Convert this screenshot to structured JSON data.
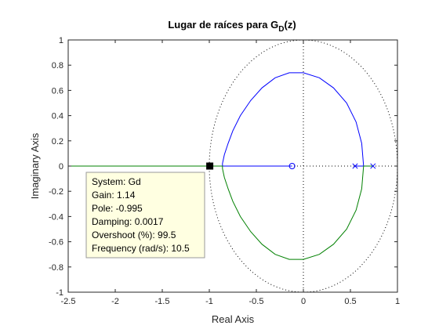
{
  "chart_data": {
    "type": "line",
    "title": {
      "main": "Lugar de raíces para G",
      "subscript": "D",
      "suffix": "(z)"
    },
    "xlabel": "Real Axis",
    "ylabel": "Imaginary Axis",
    "xlim": [
      -2.5,
      1
    ],
    "ylim": [
      -1,
      1
    ],
    "xticks": [
      -2.5,
      -2,
      -1.5,
      -1,
      -0.5,
      0,
      0.5,
      1
    ],
    "xtick_labels": [
      "-2.5",
      "-2",
      "-1.5",
      "-1",
      "-0.5",
      "0",
      "0.5",
      "1"
    ],
    "yticks": [
      -1,
      -0.8,
      -0.6,
      -0.4,
      -0.2,
      0,
      0.2,
      0.4,
      0.6,
      0.8,
      1
    ],
    "ytick_labels": [
      "-1",
      "-0.8",
      "-0.6",
      "-0.4",
      "-0.2",
      "0",
      "0.2",
      "0.4",
      "0.6",
      "0.8",
      "1"
    ],
    "grid": false,
    "unit_circle": true,
    "colors": {
      "branch1": "#0000ff",
      "branch2": "#008000",
      "guide": "#000000"
    },
    "series": [
      {
        "color": "#0000ff",
        "x": [
          0.55,
          0.64,
          0.62,
          0.56,
          0.46,
          0.32,
          0.17,
          0.0,
          -0.15,
          -0.3,
          -0.44,
          -0.56,
          -0.67,
          -0.75,
          -0.8,
          -0.84,
          -0.86,
          -0.86,
          -0.12
        ],
        "y": [
          0,
          0,
          0.18,
          0.35,
          0.5,
          0.62,
          0.7,
          0.74,
          0.74,
          0.7,
          0.62,
          0.52,
          0.4,
          0.28,
          0.18,
          0.09,
          0.02,
          0,
          0
        ]
      },
      {
        "color": "#008000",
        "x": [
          0.74,
          0.64,
          0.62,
          0.56,
          0.46,
          0.32,
          0.17,
          0.0,
          -0.15,
          -0.3,
          -0.44,
          -0.56,
          -0.67,
          -0.75,
          -0.8,
          -0.84,
          -0.86,
          -0.86,
          -2.5
        ],
        "y": [
          0,
          0,
          -0.18,
          -0.35,
          -0.5,
          -0.62,
          -0.7,
          -0.74,
          -0.74,
          -0.7,
          -0.62,
          -0.52,
          -0.4,
          -0.28,
          -0.18,
          -0.09,
          -0.02,
          0,
          0
        ]
      }
    ],
    "poles": [
      {
        "x": 0.55,
        "y": 0
      },
      {
        "x": 0.74,
        "y": 0
      }
    ],
    "zeros": [
      {
        "x": -0.12,
        "y": 0
      }
    ],
    "marker": {
      "x": -0.995,
      "y": 0
    },
    "datatip": {
      "lines": [
        "System: Gd",
        "Gain: 1.14",
        "Pole: -0.995",
        "Damping: 0.0017",
        "Overshoot (%): 99.5",
        "Frequency (rad/s): 10.5"
      ]
    }
  }
}
